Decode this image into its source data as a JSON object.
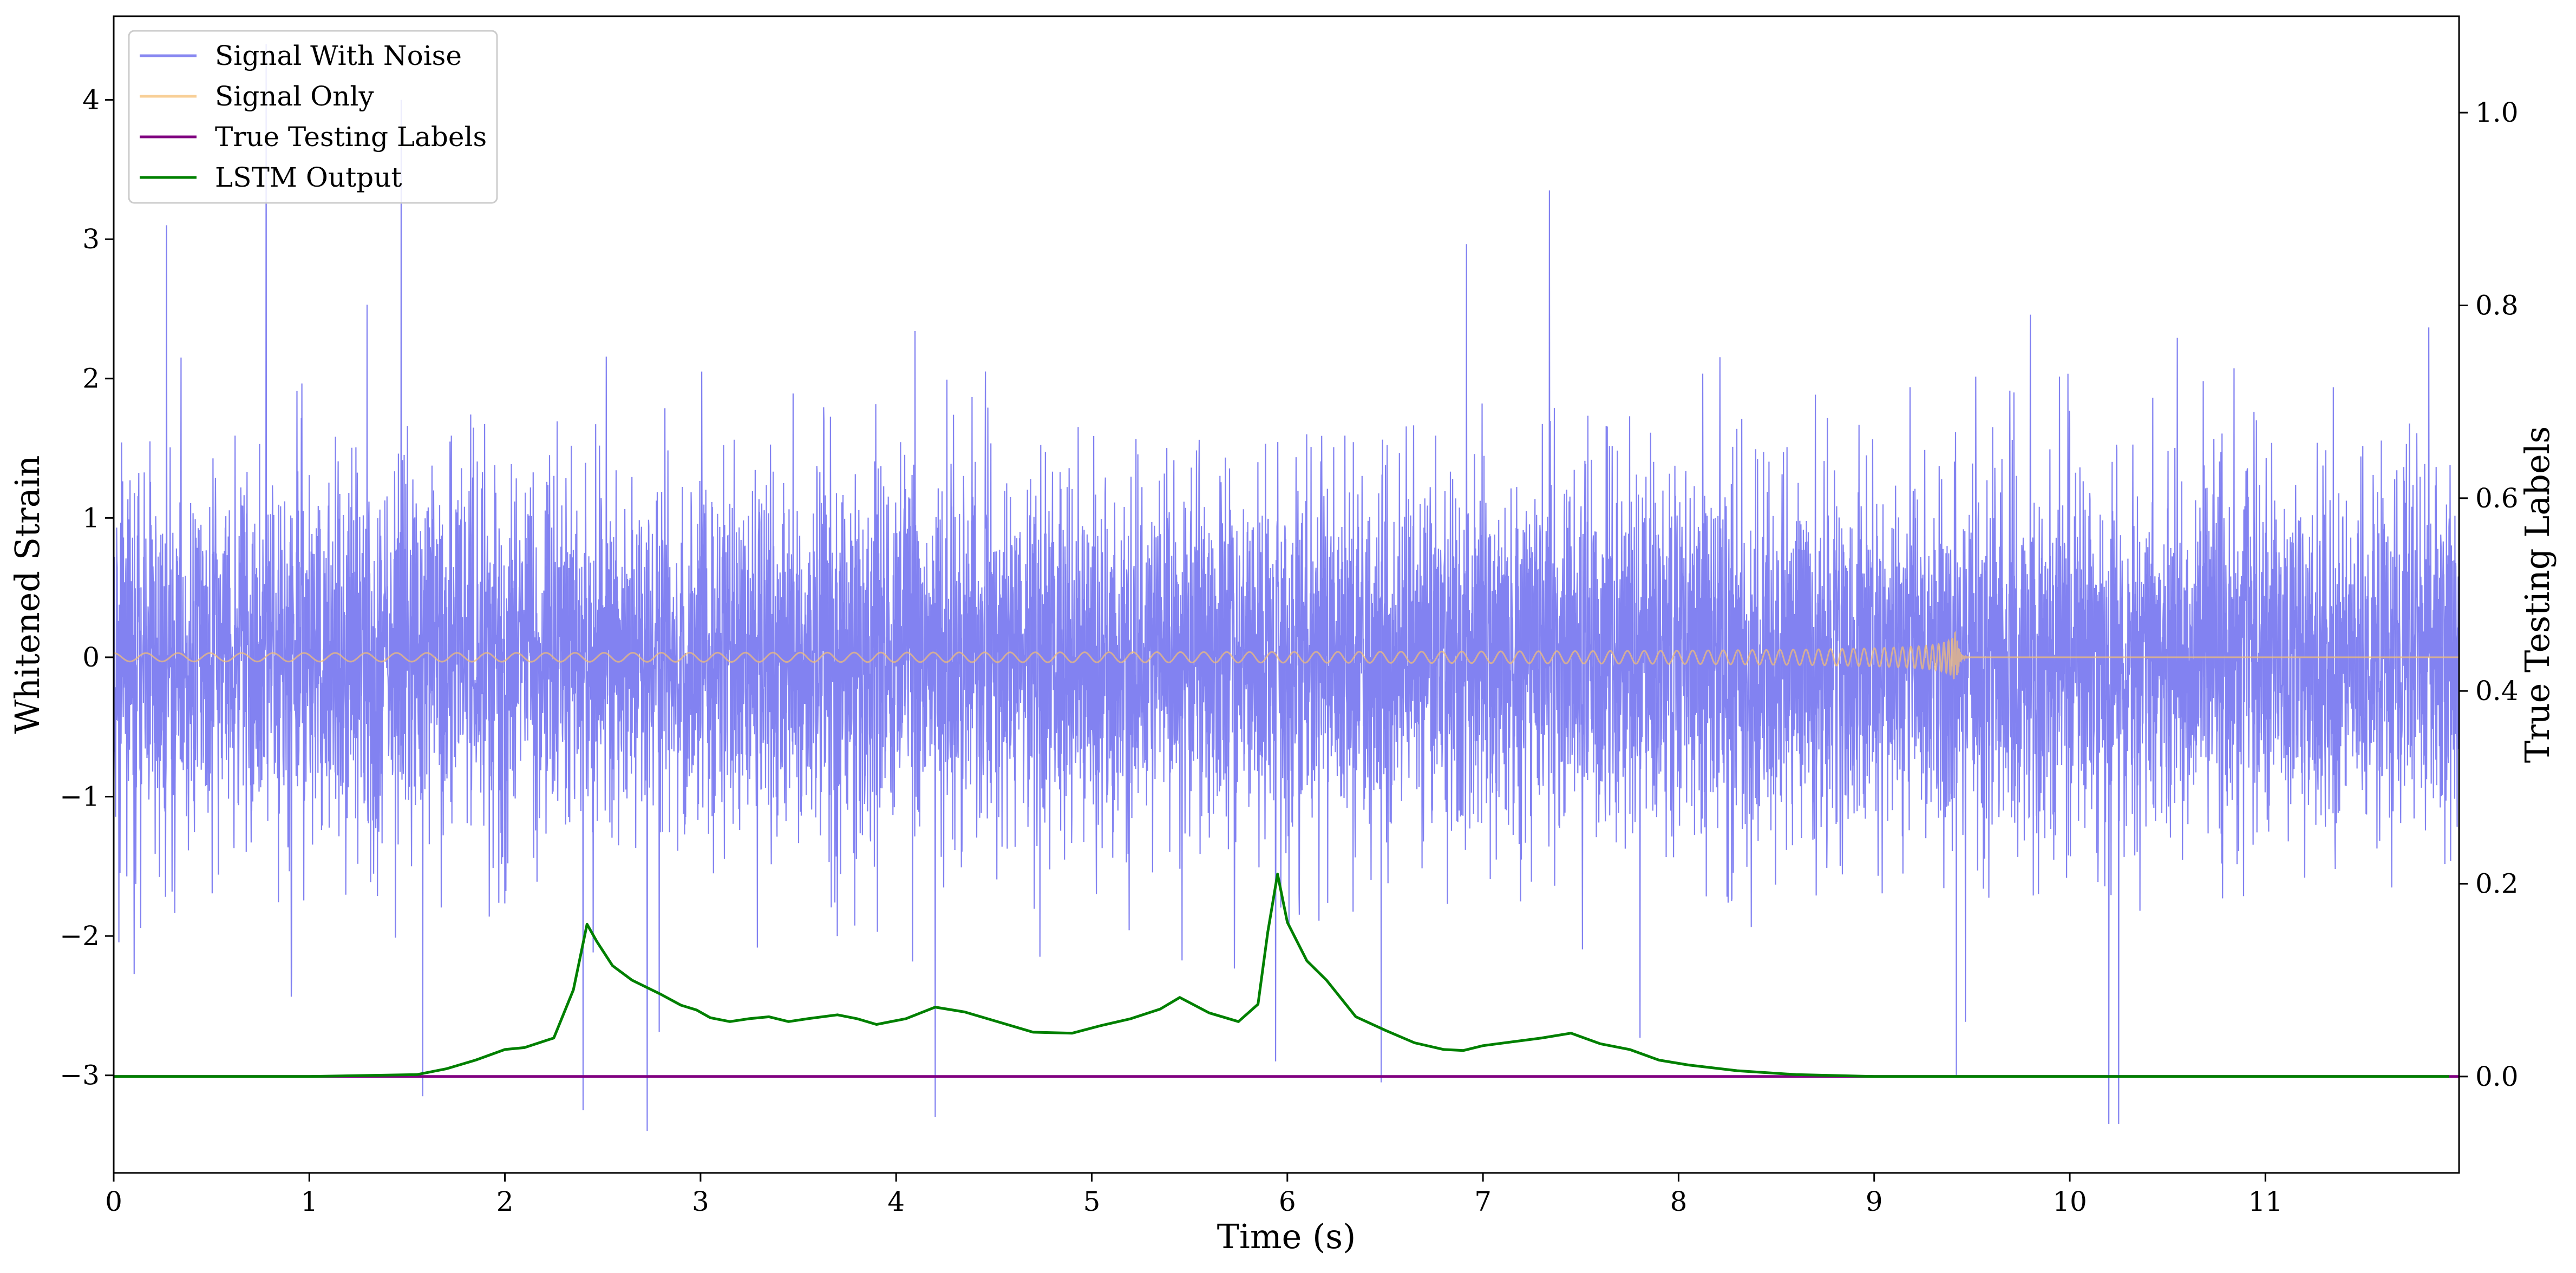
{
  "chart_data": {
    "type": "line",
    "xlabel": "Time (s)",
    "ylabel": "Whitened Strain",
    "y2label": "True Testing Labels",
    "xlim": [
      0,
      11.99
    ],
    "ylim": [
      -3.7,
      4.6
    ],
    "y2lim": [
      -0.1,
      1.1
    ],
    "x_ticks": [
      0,
      1,
      2,
      3,
      4,
      5,
      6,
      7,
      8,
      9,
      10,
      11
    ],
    "x_tick_labels": [
      "0",
      "1",
      "2",
      "3",
      "4",
      "5",
      "6",
      "7",
      "8",
      "9",
      "10",
      "11"
    ],
    "y_ticks": [
      -3,
      -2,
      -1,
      0,
      1,
      2,
      3,
      4
    ],
    "y_tick_labels": [
      "−3",
      "−2",
      "−1",
      "0",
      "1",
      "2",
      "3",
      "4"
    ],
    "y2_ticks": [
      0.0,
      0.2,
      0.4,
      0.6,
      0.8,
      1.0
    ],
    "y2_tick_labels": [
      "0.0",
      "0.2",
      "0.4",
      "0.6",
      "0.8",
      "1.0"
    ],
    "grid": false,
    "legend_position": "top-left",
    "series": [
      {
        "name": "Signal With Noise",
        "color": "#7b7bf0",
        "axis": "left",
        "kind": "noise",
        "x_range": [
          0,
          11.99
        ],
        "typical_band": [
          -1.3,
          1.3
        ],
        "peaks": [
          {
            "x": 0.78,
            "y": 4.4
          },
          {
            "x": 1.47,
            "y": 4.0
          },
          {
            "x": 7.34,
            "y": 3.35
          },
          {
            "x": 0.27,
            "y": 3.1
          },
          {
            "x": 10.2,
            "y": -3.35
          },
          {
            "x": 10.25,
            "y": -3.35
          },
          {
            "x": 2.4,
            "y": -3.25
          },
          {
            "x": 4.2,
            "y": -3.3
          },
          {
            "x": 1.58,
            "y": -3.15
          },
          {
            "x": 6.48,
            "y": -3.05
          },
          {
            "x": 5.94,
            "y": -2.9
          },
          {
            "x": 9.42,
            "y": -3.0
          }
        ]
      },
      {
        "name": "Signal Only",
        "color": "#f5bf74",
        "axis": "left",
        "kind": "chirp",
        "x_range": [
          0,
          11.99
        ],
        "merger_time": 9.42,
        "start_amplitude": 0.03,
        "peak_amplitude": 0.42
      },
      {
        "name": "True Testing Labels",
        "color": "#800080",
        "axis": "right",
        "x": [
          0,
          11.99
        ],
        "y": [
          0.0,
          0.0
        ]
      },
      {
        "name": "LSTM Output",
        "color": "#008000",
        "axis": "right",
        "x": [
          0,
          1.0,
          1.55,
          1.7,
          1.85,
          2.0,
          2.1,
          2.25,
          2.35,
          2.42,
          2.47,
          2.55,
          2.65,
          2.8,
          2.9,
          2.98,
          3.05,
          3.15,
          3.25,
          3.35,
          3.45,
          3.55,
          3.7,
          3.8,
          3.9,
          4.05,
          4.2,
          4.35,
          4.5,
          4.7,
          4.9,
          5.05,
          5.2,
          5.35,
          5.45,
          5.6,
          5.75,
          5.85,
          5.9,
          5.95,
          6.0,
          6.1,
          6.2,
          6.35,
          6.5,
          6.65,
          6.8,
          6.9,
          7.0,
          7.15,
          7.3,
          7.45,
          7.6,
          7.75,
          7.9,
          8.05,
          8.3,
          8.6,
          9.0,
          9.5,
          10.0,
          11.94
        ],
        "y": [
          0.0,
          0.0,
          0.002,
          0.008,
          0.017,
          0.028,
          0.03,
          0.04,
          0.09,
          0.158,
          0.14,
          0.115,
          0.1,
          0.085,
          0.074,
          0.069,
          0.061,
          0.057,
          0.06,
          0.062,
          0.057,
          0.06,
          0.064,
          0.06,
          0.054,
          0.06,
          0.072,
          0.067,
          0.058,
          0.046,
          0.045,
          0.053,
          0.06,
          0.07,
          0.082,
          0.066,
          0.057,
          0.075,
          0.15,
          0.21,
          0.16,
          0.12,
          0.1,
          0.062,
          0.048,
          0.035,
          0.028,
          0.027,
          0.032,
          0.036,
          0.04,
          0.045,
          0.034,
          0.028,
          0.017,
          0.012,
          0.006,
          0.002,
          0.0,
          0.0,
          0.0,
          0.0
        ]
      }
    ]
  }
}
